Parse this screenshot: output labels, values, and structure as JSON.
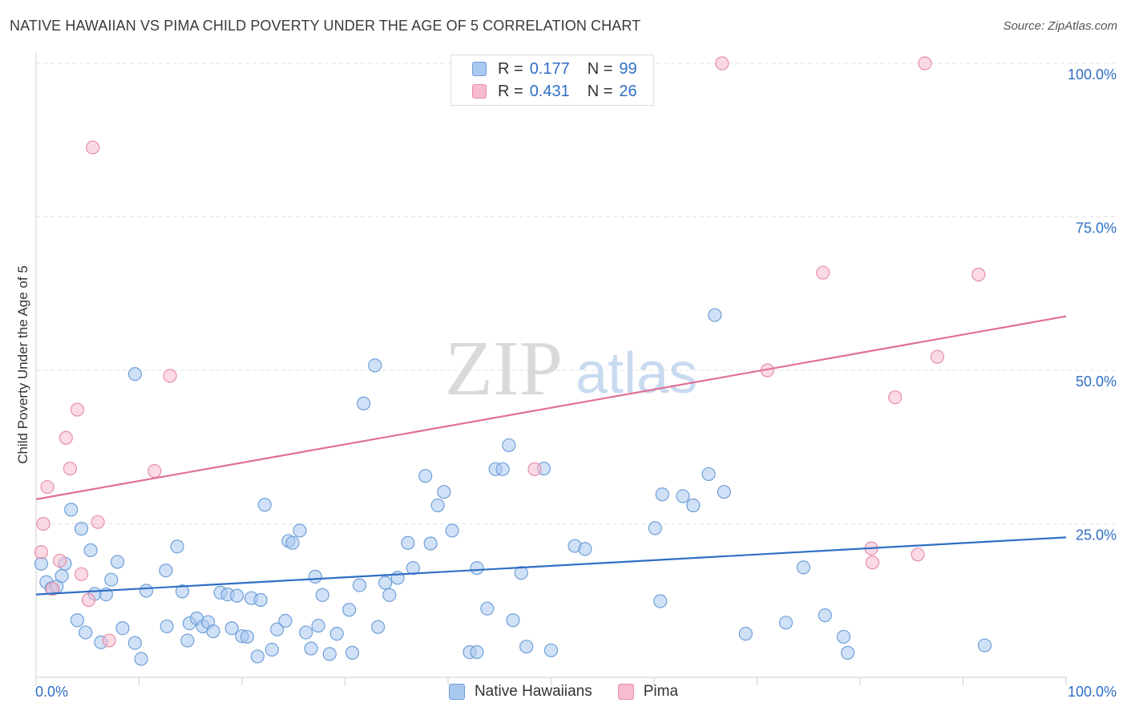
{
  "header": {
    "title": "NATIVE HAWAIIAN VS PIMA CHILD POVERTY UNDER THE AGE OF 5 CORRELATION CHART",
    "source": "Source: ZipAtlas.com"
  },
  "watermark": {
    "zip": "ZIP",
    "atlas": "atlas"
  },
  "legend": {
    "rows": [
      {
        "r_label": "R =",
        "r_value": "0.177",
        "n_label": "N =",
        "n_value": "99"
      },
      {
        "r_label": "R =",
        "r_value": "0.431",
        "n_label": "N =",
        "n_value": "26"
      }
    ]
  },
  "bottom_legend": {
    "series_a": "Native Hawaiians",
    "series_b": "Pima"
  },
  "colors": {
    "blue_fill": "#a9c8f0",
    "blue_stroke": "#6f9fd8",
    "blue_line": "#2f6fc4",
    "pink_fill": "#f7bccd",
    "pink_stroke": "#e58fa8",
    "pink_line": "#e07096",
    "tick_label": "#2f6fc4",
    "grid": "#e2e2e2"
  },
  "chart_data": {
    "type": "scatter",
    "title": "NATIVE HAWAIIAN VS PIMA CHILD POVERTY UNDER THE AGE OF 5 CORRELATION CHART",
    "xlabel": "",
    "ylabel": "Child Poverty Under the Age of 5",
    "xlim": [
      0,
      100
    ],
    "ylim": [
      0,
      100
    ],
    "x_tick_labels": [
      "0.0%",
      "100.0%"
    ],
    "y_ticks": [
      {
        "value": 25,
        "label": "25.0%"
      },
      {
        "value": 50,
        "label": "50.0%"
      },
      {
        "value": 75,
        "label": "75.0%"
      },
      {
        "value": 100,
        "label": "100.0%"
      }
    ],
    "grid": "horizontal dashed",
    "legend_position": "top-center",
    "series": [
      {
        "name": "Native Hawaiians",
        "r": 0.177,
        "n": 99,
        "trend": {
          "x": [
            0,
            100
          ],
          "y": [
            13.5,
            22.8
          ]
        },
        "points": [
          [
            0.5,
            18.5
          ],
          [
            1,
            15.5
          ],
          [
            1.5,
            14.5
          ],
          [
            2,
            14.8
          ],
          [
            2.5,
            16.5
          ],
          [
            2.8,
            18.5
          ],
          [
            3.4,
            27.3
          ],
          [
            4,
            9.3
          ],
          [
            4.4,
            24.2
          ],
          [
            4.8,
            7.3
          ],
          [
            5.3,
            20.7
          ],
          [
            5.7,
            13.6
          ],
          [
            6.3,
            5.7
          ],
          [
            6.8,
            13.5
          ],
          [
            7.3,
            15.9
          ],
          [
            7.9,
            18.8
          ],
          [
            8.4,
            8
          ],
          [
            9.6,
            49.4
          ],
          [
            9.6,
            5.6
          ],
          [
            10.2,
            3
          ],
          [
            10.7,
            14.1
          ],
          [
            12.7,
            8.3
          ],
          [
            12.6,
            17.4
          ],
          [
            13.7,
            21.3
          ],
          [
            14.2,
            14
          ],
          [
            14.7,
            6
          ],
          [
            14.9,
            8.8
          ],
          [
            15.6,
            9.6
          ],
          [
            16.2,
            8.3
          ],
          [
            16.7,
            9
          ],
          [
            17.2,
            7.5
          ],
          [
            17.9,
            13.8
          ],
          [
            18.6,
            13.5
          ],
          [
            19,
            8
          ],
          [
            19.5,
            13.3
          ],
          [
            20,
            6.7
          ],
          [
            20.5,
            6.6
          ],
          [
            20.9,
            12.9
          ],
          [
            21.5,
            3.4
          ],
          [
            21.8,
            12.6
          ],
          [
            22.2,
            28.1
          ],
          [
            22.9,
            4.5
          ],
          [
            23.4,
            7.8
          ],
          [
            24.2,
            9.2
          ],
          [
            24.5,
            22.2
          ],
          [
            24.9,
            21.9
          ],
          [
            25.6,
            23.9
          ],
          [
            26.2,
            7.3
          ],
          [
            26.7,
            4.7
          ],
          [
            27.1,
            16.4
          ],
          [
            27.4,
            8.4
          ],
          [
            27.8,
            13.4
          ],
          [
            28.5,
            3.8
          ],
          [
            29.2,
            7.1
          ],
          [
            30.7,
            4
          ],
          [
            30.4,
            11
          ],
          [
            31.4,
            15
          ],
          [
            31.8,
            44.6
          ],
          [
            32.9,
            50.8
          ],
          [
            33.2,
            8.2
          ],
          [
            33.9,
            15.4
          ],
          [
            34.3,
            13.4
          ],
          [
            35.1,
            16.2
          ],
          [
            36.1,
            21.9
          ],
          [
            36.6,
            17.8
          ],
          [
            37.8,
            32.8
          ],
          [
            38.3,
            21.8
          ],
          [
            39,
            28
          ],
          [
            39.6,
            30.2
          ],
          [
            40.4,
            23.9
          ],
          [
            42.1,
            4.1
          ],
          [
            42.8,
            17.8
          ],
          [
            42.8,
            4.1
          ],
          [
            43.8,
            11.2
          ],
          [
            44.6,
            33.9
          ],
          [
            45.3,
            33.9
          ],
          [
            45.9,
            37.8
          ],
          [
            46.3,
            9.3
          ],
          [
            47.1,
            17
          ],
          [
            47.6,
            5
          ],
          [
            49.3,
            34
          ],
          [
            50,
            4.4
          ],
          [
            52.3,
            21.4
          ],
          [
            53.3,
            20.9
          ],
          [
            60.1,
            24.3
          ],
          [
            60.6,
            12.4
          ],
          [
            60.8,
            29.8
          ],
          [
            62.8,
            29.5
          ],
          [
            63.8,
            28
          ],
          [
            65.3,
            33.1
          ],
          [
            65.9,
            59
          ],
          [
            66.8,
            30.2
          ],
          [
            68.9,
            7.1
          ],
          [
            72.8,
            8.9
          ],
          [
            74.5,
            17.9
          ],
          [
            76.6,
            10.1
          ],
          [
            78.4,
            6.6
          ],
          [
            78.8,
            4
          ],
          [
            92.1,
            5.2
          ]
        ]
      },
      {
        "name": "Pima",
        "r": 0.431,
        "n": 26,
        "trend": {
          "x": [
            0,
            100
          ],
          "y": [
            29,
            58.8
          ]
        },
        "points": [
          [
            0.5,
            20.4
          ],
          [
            0.7,
            25
          ],
          [
            1.1,
            31
          ],
          [
            1.6,
            14.4
          ],
          [
            2.3,
            19
          ],
          [
            2.9,
            39
          ],
          [
            3.3,
            34
          ],
          [
            4,
            43.6
          ],
          [
            4.4,
            16.8
          ],
          [
            5.1,
            12.6
          ],
          [
            5.5,
            86.3
          ],
          [
            6,
            25.3
          ],
          [
            7.1,
            6
          ],
          [
            11.5,
            33.6
          ],
          [
            13,
            49.1
          ],
          [
            48.4,
            33.9
          ],
          [
            66.6,
            100
          ],
          [
            71,
            50
          ],
          [
            76.4,
            65.9
          ],
          [
            81.1,
            21
          ],
          [
            81.2,
            18.7
          ],
          [
            83.4,
            45.6
          ],
          [
            85.6,
            20
          ],
          [
            86.3,
            100
          ],
          [
            87.5,
            52.2
          ],
          [
            91.5,
            65.6
          ]
        ]
      }
    ]
  }
}
